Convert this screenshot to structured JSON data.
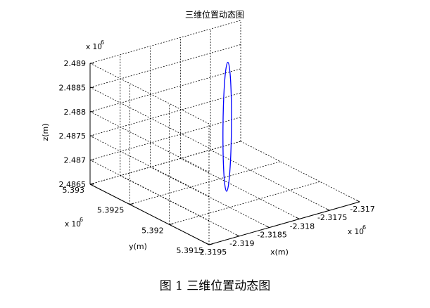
{
  "caption": "图 1  三维位置动态图",
  "chart_data": {
    "type": "line3d",
    "title": "三维位置动态图",
    "xlabel": "x(m)",
    "ylabel": "y(m)",
    "zlabel": "z(m)",
    "x_exponent": "x 10",
    "x_exponent_power": "6",
    "y_exponent": "x 10",
    "y_exponent_power": "6",
    "z_exponent": "x 10",
    "z_exponent_power": "6",
    "xlim": [
      -2.3195,
      -2.317
    ],
    "ylim": [
      5.3915,
      5.393
    ],
    "zlim": [
      2.4865,
      2.489
    ],
    "x_ticks": [
      -2.3195,
      -2.319,
      -2.3185,
      -2.318,
      -2.3175,
      -2.317
    ],
    "x_tick_labels": [
      "-2.3195",
      "-2.319",
      "-2.3185",
      "-2.318",
      "-2.3175",
      "-2.317"
    ],
    "y_ticks": [
      5.3915,
      5.392,
      5.3925,
      5.393
    ],
    "y_tick_labels": [
      "5.3915",
      "5.392",
      "5.3925",
      "5.393"
    ],
    "z_ticks": [
      2.4865,
      2.487,
      2.4875,
      2.488,
      2.4885,
      2.489
    ],
    "z_tick_labels": [
      "2.4865",
      "2.487",
      "2.4875",
      "2.488",
      "2.4885",
      "2.489"
    ],
    "grid": true,
    "series": [
      {
        "color": "#0000ff",
        "shape": "ellipse",
        "start": {
          "x": -2.31855,
          "y": 5.392,
          "z": 2.48685
        },
        "end": {
          "x": -2.31774,
          "y": 5.3926,
          "z": 2.48873
        }
      }
    ]
  }
}
